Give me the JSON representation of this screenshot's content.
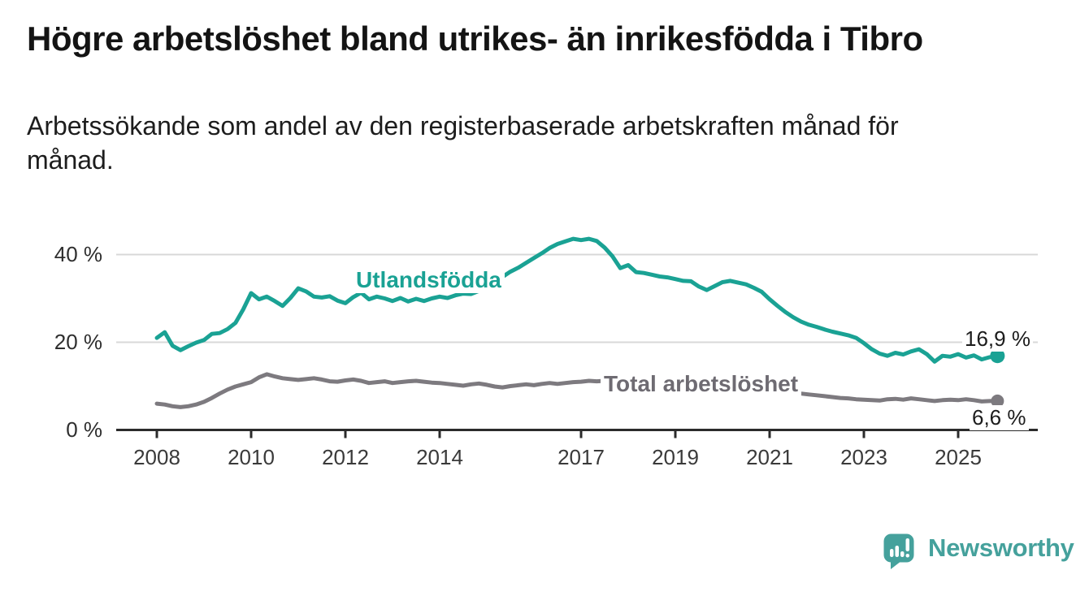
{
  "title": "Högre arbetslöshet bland utrikes- än inrikesfödda i Tibro",
  "subtitle_line1": "Arbetssökande som andel av den registerbaserade arbetskraften månad för",
  "subtitle_line2": "månad.",
  "chart_data": {
    "type": "line",
    "title": "Högre arbetslöshet bland utrikes- än inrikesfödda i Tibro",
    "subtitle": "Arbetssökande som andel av den registerbaserade arbetskraften månad för månad.",
    "unit": "%",
    "grid": "horizontal",
    "x_start": 2008,
    "x_step_years": 0.16667,
    "x_tick_years": [
      2008,
      2010,
      2012,
      2014,
      2017,
      2019,
      2021,
      2023,
      2025
    ],
    "x_tick_labels": [
      "2008",
      "2010",
      "2012",
      "2014",
      "2017",
      "2019",
      "2021",
      "2023",
      "2025"
    ],
    "y_ticks": [
      {
        "value": 0,
        "label": "0 %"
      },
      {
        "value": 20,
        "label": "20 %"
      },
      {
        "value": 40,
        "label": "40 %"
      }
    ],
    "ylim": [
      0,
      46
    ],
    "series": [
      {
        "name": "Utlandsfödda",
        "color": "#1aa294",
        "label_color": "#1aa294",
        "end_label": "16,9 %",
        "last_value": 16.9,
        "values": [
          21.0,
          22.3,
          19.2,
          18.2,
          19.1,
          19.9,
          20.5,
          21.9,
          22.1,
          23.0,
          24.4,
          27.5,
          31.2,
          29.8,
          30.4,
          29.4,
          28.3,
          30.1,
          32.3,
          31.6,
          30.4,
          30.2,
          30.5,
          29.5,
          28.9,
          30.3,
          31.3,
          29.8,
          30.4,
          30.0,
          29.4,
          30.1,
          29.3,
          29.9,
          29.4,
          30.0,
          30.4,
          30.1,
          30.7,
          31.1,
          31.0,
          31.7,
          32.7,
          33.8,
          34.9,
          36.1,
          37.0,
          38.1,
          39.2,
          40.3,
          41.5,
          42.4,
          43.0,
          43.6,
          43.3,
          43.6,
          43.1,
          41.6,
          39.6,
          36.9,
          37.6,
          36.0,
          35.8,
          35.4,
          35.0,
          34.8,
          34.4,
          34.0,
          33.9,
          32.7,
          31.9,
          32.8,
          33.7,
          34.0,
          33.6,
          33.2,
          32.4,
          31.5,
          29.8,
          28.3,
          26.9,
          25.7,
          24.7,
          24.0,
          23.5,
          22.9,
          22.4,
          22.0,
          21.6,
          21.0,
          19.8,
          18.4,
          17.4,
          16.9,
          17.6,
          17.2,
          17.9,
          18.4,
          17.3,
          15.6,
          16.9,
          16.7,
          17.3,
          16.5,
          17.0,
          16.1,
          16.6,
          16.9
        ]
      },
      {
        "name": "Total arbetslöshet",
        "color": "#7d7a7f",
        "label_color": "#6e6b72",
        "end_label": "6,6 %",
        "last_value": 6.6,
        "values": [
          6.0,
          5.8,
          5.4,
          5.2,
          5.4,
          5.8,
          6.4,
          7.3,
          8.3,
          9.2,
          9.9,
          10.4,
          10.9,
          12.0,
          12.7,
          12.2,
          11.8,
          11.6,
          11.4,
          11.6,
          11.8,
          11.5,
          11.1,
          11.0,
          11.3,
          11.5,
          11.2,
          10.7,
          10.9,
          11.1,
          10.7,
          10.9,
          11.1,
          11.2,
          11.0,
          10.8,
          10.7,
          10.5,
          10.3,
          10.1,
          10.4,
          10.6,
          10.3,
          9.9,
          9.7,
          10.0,
          10.2,
          10.4,
          10.2,
          10.5,
          10.7,
          10.5,
          10.7,
          10.9,
          11.0,
          11.2,
          11.1,
          11.2,
          11.1,
          11.0,
          10.9,
          10.7,
          10.6,
          10.5,
          10.3,
          10.2,
          10.1,
          10.0,
          9.9,
          9.8,
          9.9,
          10.0,
          10.1,
          10.2,
          10.1,
          9.9,
          9.7,
          9.5,
          9.3,
          9.0,
          8.8,
          8.6,
          8.3,
          8.1,
          7.9,
          7.7,
          7.5,
          7.3,
          7.2,
          7.0,
          6.9,
          6.8,
          6.7,
          7.0,
          7.1,
          6.9,
          7.2,
          7.0,
          6.8,
          6.6,
          6.8,
          6.9,
          6.8,
          7.0,
          6.8,
          6.5,
          6.6,
          6.6
        ]
      }
    ]
  },
  "colors": {
    "accent_teal": "#1aa294",
    "series_gray": "#7d7a7f",
    "gridline": "#d8d8d8",
    "axis": "#2b2b2b",
    "brand_teal": "#45a19c"
  },
  "footer": {
    "brand": "Newsworthy"
  }
}
